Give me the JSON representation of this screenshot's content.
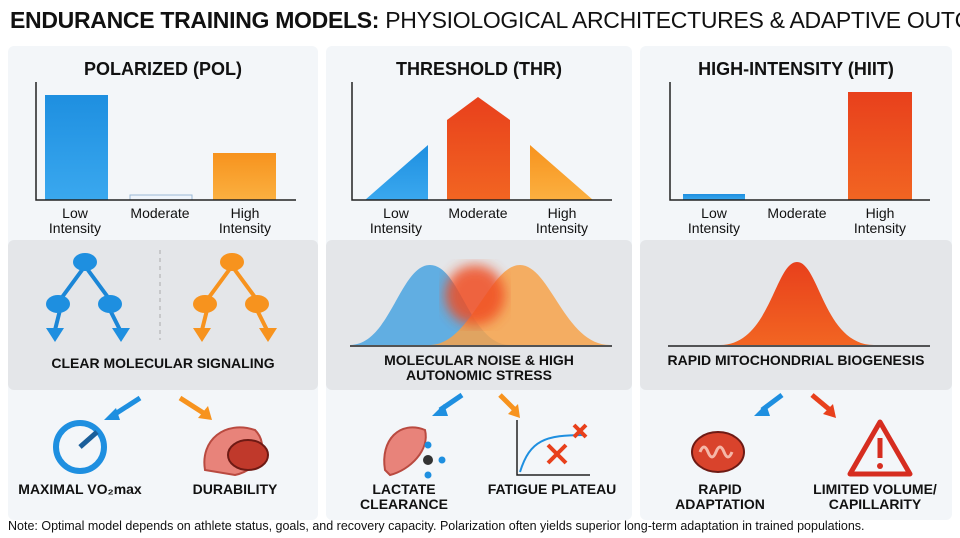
{
  "header": {
    "title_bold": "ENDURANCE TRAINING MODELS:",
    "title_rest": "PHYSIOLOGICAL ARCHITECTURES & ADAPTIVE OUTCOMES"
  },
  "panels": [
    {
      "title": "POLARIZED (POL)",
      "categories": [
        "Low Intensity",
        "Moderate",
        "High Intensity"
      ],
      "signal": "CLEAR MOLECULAR SIGNALING",
      "outcomes": [
        "MAXIMAL VO₂max",
        "DURABILITY"
      ]
    },
    {
      "title": "THRESHOLD (THR)",
      "categories": [
        "Low Intensity",
        "Moderate",
        "High Intensity"
      ],
      "signal": "MOLECULAR NOISE & HIGH AUTONOMIC STRESS",
      "outcomes": [
        "LACTATE CLEARANCE",
        "FATIGUE PLATEAU"
      ]
    },
    {
      "title": "HIGH-INTENSITY (HIIT)",
      "categories": [
        "Low Intensity",
        "Moderate",
        "High Intensity"
      ],
      "signal": "RAPID MITOCHONDRIAL BIOGENESIS",
      "outcomes": [
        "RAPID ADAPTATION",
        "LIMITED VOLUME/ CAPILLARITY"
      ]
    }
  ],
  "note": "Note: Optimal model depends on athlete status, goals, and recovery capacity. Polarization often yields superior long-term adaptation in trained populations."
}
